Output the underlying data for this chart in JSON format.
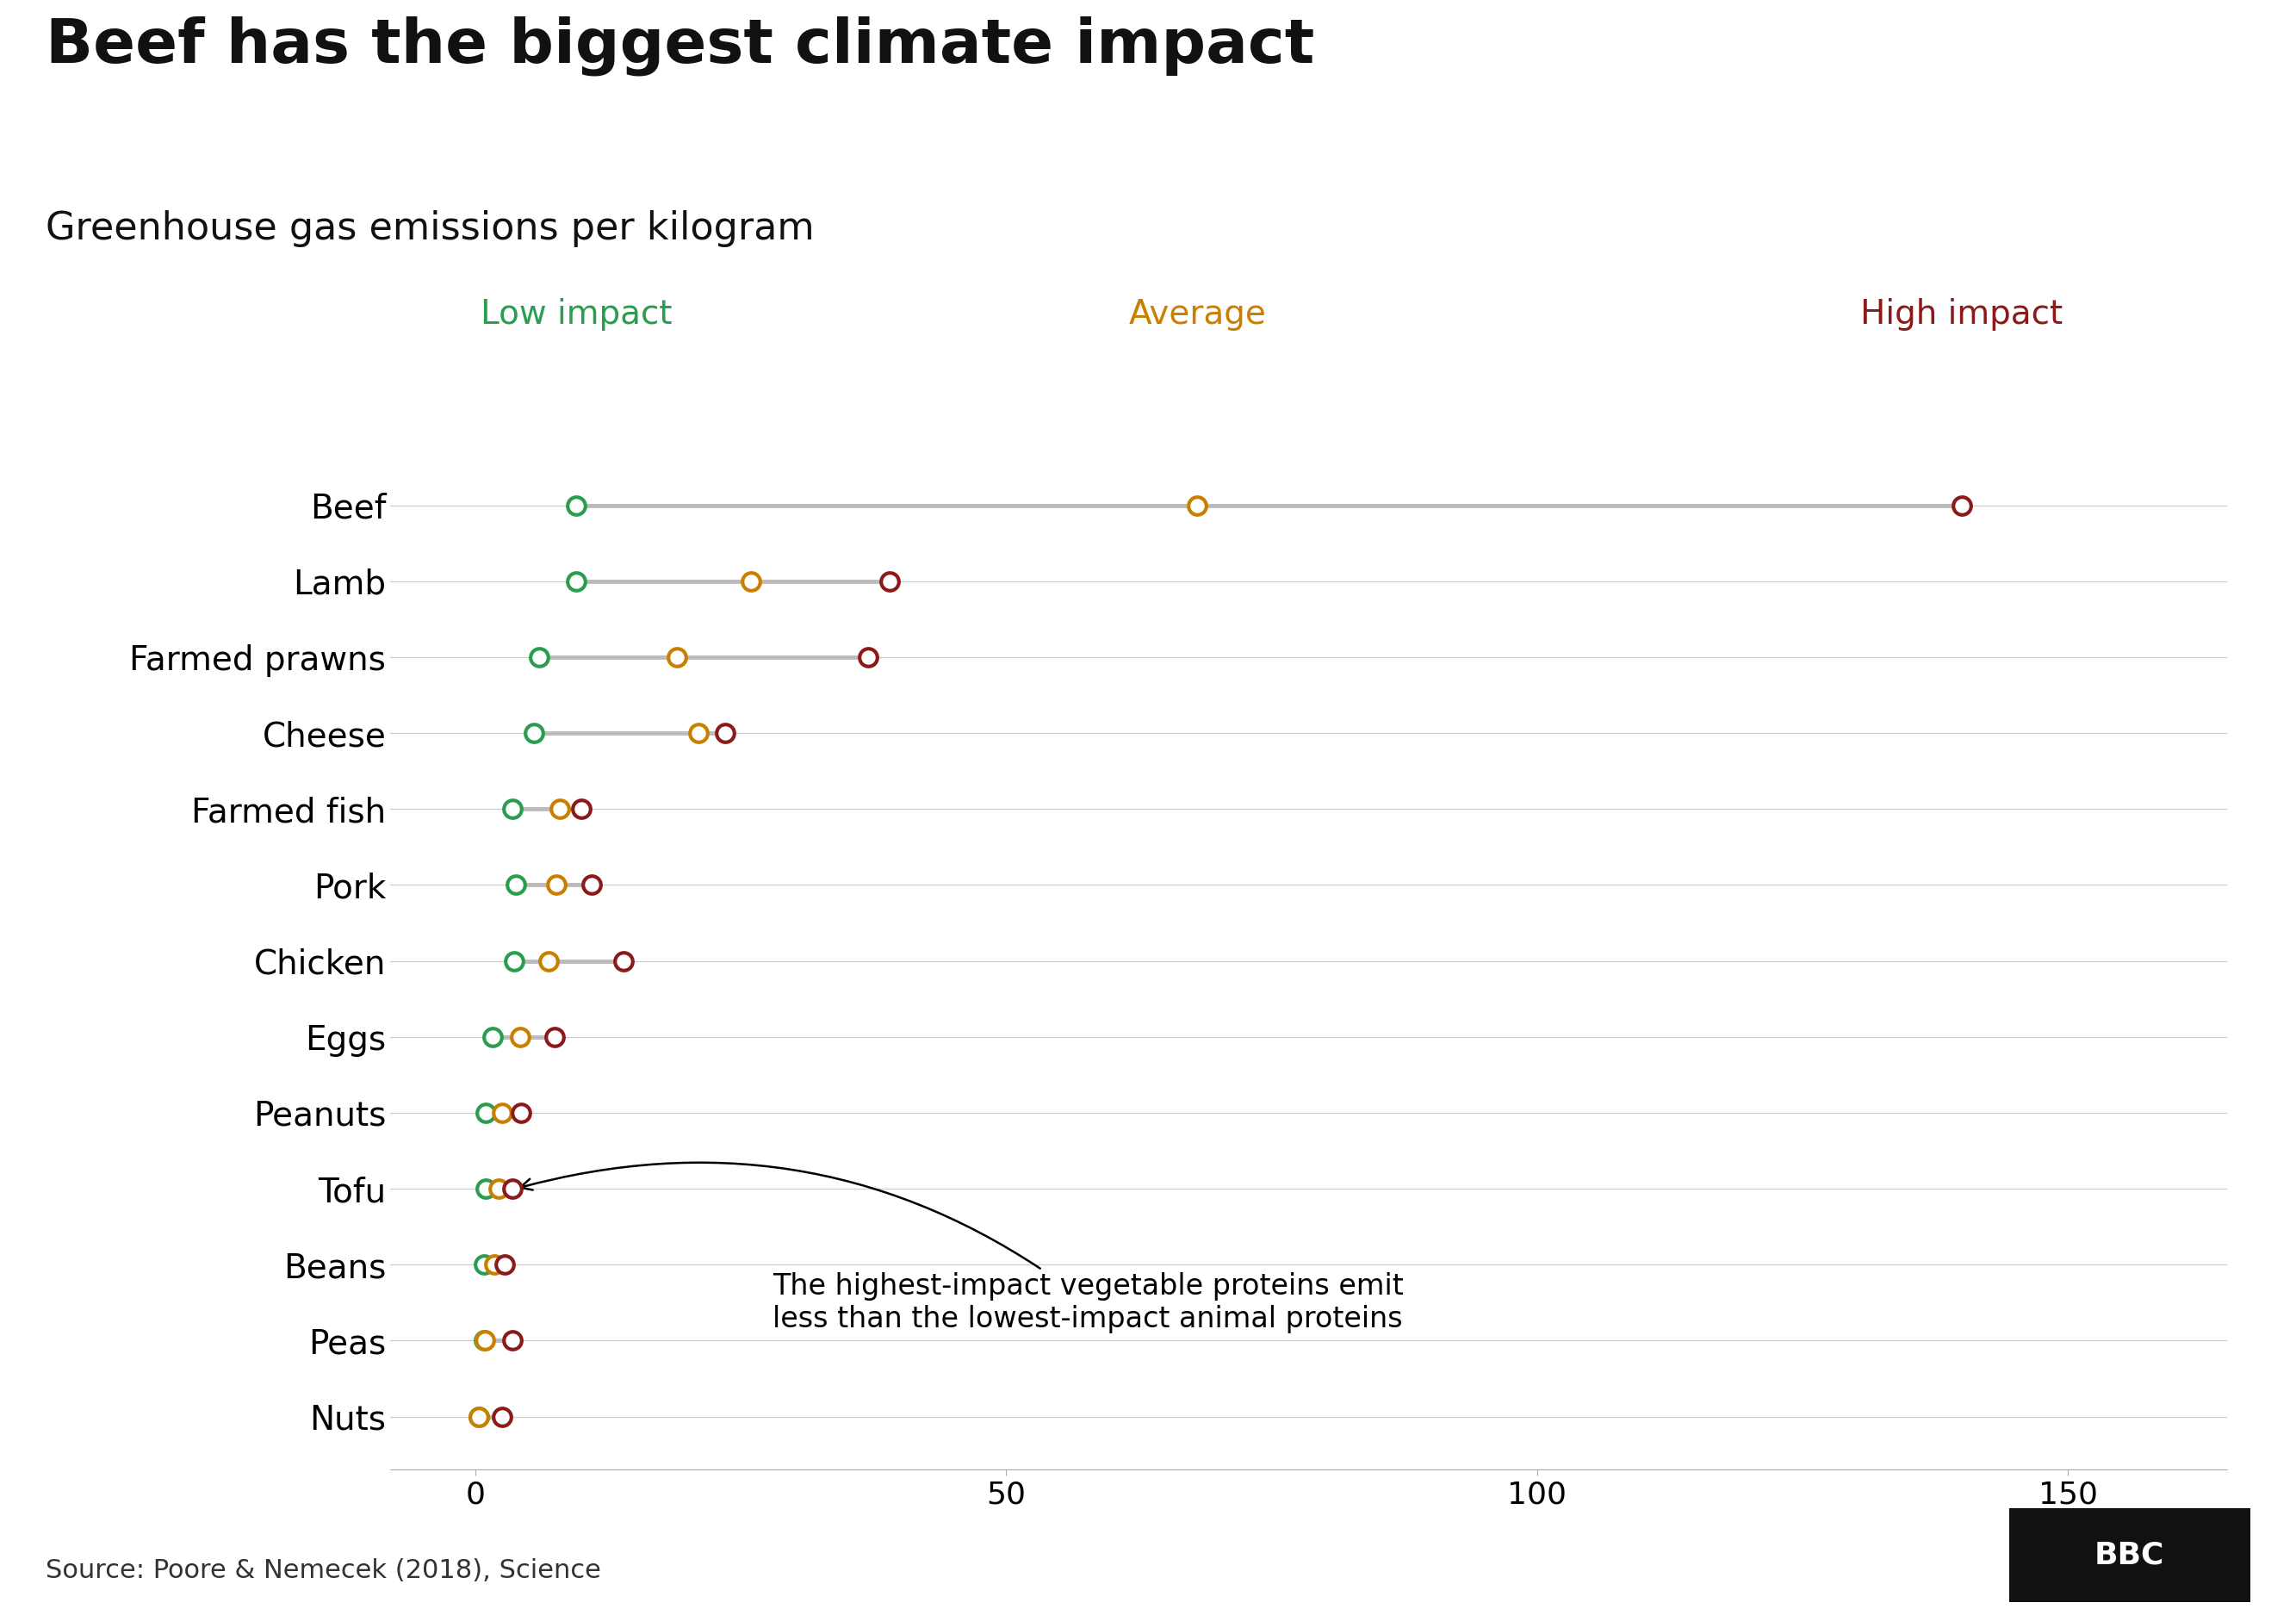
{
  "title": "Beef has the biggest climate impact",
  "subtitle": "Greenhouse gas emissions per kilogram",
  "source": "Source: Poore & Nemecek (2018), Science",
  "legend_low": "Low impact",
  "legend_avg": "Average",
  "legend_high": "High impact",
  "color_low": "#2a9d4e",
  "color_avg": "#c97f00",
  "color_high": "#8b1a1a",
  "color_line": "#bbbbbb",
  "annotation_text": "The highest-impact vegetable proteins emit\nless than the lowest-impact animal proteins",
  "foods": [
    "Beef",
    "Lamb",
    "Farmed prawns",
    "Cheese",
    "Farmed fish",
    "Pork",
    "Chicken",
    "Eggs",
    "Peanuts",
    "Tofu",
    "Beans",
    "Peas",
    "Nuts"
  ],
  "low": [
    9.5,
    9.5,
    6.0,
    5.5,
    3.5,
    3.8,
    3.7,
    1.6,
    1.0,
    1.0,
    0.8,
    0.8,
    0.3
  ],
  "avg": [
    68.0,
    26.0,
    19.0,
    21.0,
    8.0,
    7.6,
    6.9,
    4.2,
    2.5,
    2.2,
    1.8,
    0.9,
    0.3
  ],
  "high": [
    140.0,
    39.0,
    37.0,
    23.5,
    10.0,
    11.0,
    14.0,
    7.5,
    4.3,
    3.5,
    2.8,
    3.5,
    2.5
  ],
  "xlim": [
    -8,
    165
  ],
  "xticks": [
    0,
    50,
    100,
    150
  ],
  "background_color": "#ffffff",
  "grid_color": "#cccccc",
  "title_fontsize": 52,
  "subtitle_fontsize": 32,
  "label_fontsize": 28,
  "tick_fontsize": 26,
  "source_fontsize": 22,
  "legend_fontsize": 28,
  "annotation_fontsize": 24,
  "marker_size": 220,
  "marker_lw": 3.0,
  "line_width": 3.5
}
